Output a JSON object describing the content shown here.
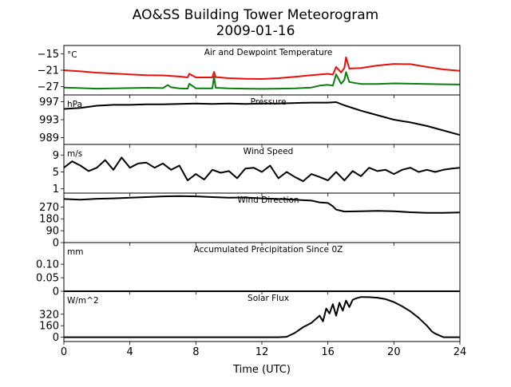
{
  "figure": {
    "title_line1": "AO&SS Building Tower Meteorogram",
    "title_line2": "2009-01-16",
    "xlabel": "Time (UTC)",
    "xlim": [
      0,
      24
    ],
    "xticks": [
      0,
      4,
      8,
      12,
      16,
      20,
      24
    ]
  },
  "chart_data": [
    {
      "type": "line",
      "title": "Air and Dewpoint Temperature",
      "unit_label": "°C",
      "ylim": [
        -30.0,
        -12.0
      ],
      "yticks": [
        -15,
        -21,
        -27
      ],
      "series": [
        {
          "color": "#e8100a",
          "x": [
            0,
            1,
            2,
            3,
            4,
            5,
            6,
            7,
            7.5,
            7.6,
            8,
            9,
            9.1,
            9.2,
            10,
            11,
            12,
            13,
            14,
            15,
            16,
            16.3,
            16.5,
            16.8,
            17,
            17.1,
            17.3,
            18,
            19,
            20,
            21,
            22,
            23,
            24
          ],
          "y": [
            -21,
            -21.4,
            -21.9,
            -22.2,
            -22.5,
            -22.8,
            -22.9,
            -23.3,
            -23.6,
            -22.3,
            -23.6,
            -23.6,
            -21.6,
            -23.5,
            -23.9,
            -24.1,
            -24.2,
            -23.9,
            -23.4,
            -22.8,
            -22.3,
            -22.6,
            -19.8,
            -21.8,
            -20.2,
            -16.3,
            -20.4,
            -20.2,
            -19.3,
            -18.7,
            -18.8,
            -19.8,
            -20.7,
            -21.2
          ]
        },
        {
          "color": "#0a7d0a",
          "x": [
            0,
            1,
            2,
            3,
            4,
            5,
            6,
            6.3,
            6.5,
            7,
            7.5,
            7.6,
            8,
            9,
            9.1,
            9.2,
            10,
            11,
            12,
            13,
            14,
            15,
            15.5,
            16,
            16.3,
            16.5,
            16.8,
            17,
            17.1,
            17.3,
            18,
            19,
            20,
            21,
            22,
            23,
            24
          ],
          "y": [
            -27.3,
            -27.5,
            -27.7,
            -27.6,
            -27.5,
            -27.4,
            -27.5,
            -26.4,
            -27.2,
            -27.6,
            -27.7,
            -25.9,
            -27.6,
            -27.6,
            -23.3,
            -27.4,
            -27.6,
            -27.7,
            -27.8,
            -27.7,
            -27.6,
            -27.3,
            -26.6,
            -26.3,
            -26.6,
            -22.5,
            -25.9,
            -24.5,
            -21.7,
            -25.3,
            -26.0,
            -26.0,
            -25.8,
            -25.9,
            -26.0,
            -26.1,
            -26.2
          ]
        }
      ]
    },
    {
      "type": "line",
      "title": "Pressure",
      "unit_label": "hPa",
      "ylim": [
        987.5,
        998.5
      ],
      "yticks": [
        997,
        993,
        989
      ],
      "series": [
        {
          "color": "#000000",
          "x": [
            0,
            1,
            2,
            3,
            4,
            5,
            6,
            7,
            8,
            9,
            10,
            11,
            12,
            13,
            14,
            15,
            16,
            16.5,
            17,
            18,
            19,
            20,
            21,
            22,
            23,
            24
          ],
          "y": [
            995.4,
            995.6,
            996.1,
            996.3,
            996.3,
            996.4,
            996.4,
            996.5,
            996.6,
            996.5,
            996.6,
            996.5,
            996.6,
            996.6,
            996.7,
            996.8,
            996.8,
            996.9,
            996.2,
            995.0,
            994.0,
            993.0,
            992.4,
            991.6,
            990.6,
            989.6
          ]
        }
      ]
    },
    {
      "type": "line",
      "title": "Wind Speed",
      "unit_label": "m/s",
      "ylim": [
        0.0,
        11.5
      ],
      "yticks": [
        9,
        5,
        1
      ],
      "series": [
        {
          "color": "#000000",
          "x": [
            0,
            0.5,
            1,
            1.5,
            2,
            2.5,
            3,
            3.5,
            4,
            4.5,
            5,
            5.5,
            6,
            6.5,
            7,
            7.5,
            8,
            8.5,
            9,
            9.5,
            10,
            10.5,
            11,
            11.5,
            12,
            12.5,
            13,
            13.5,
            14,
            14.5,
            15,
            15.5,
            16,
            16.5,
            17,
            17.5,
            18,
            18.5,
            19,
            19.5,
            20,
            20.5,
            21,
            21.5,
            22,
            22.5,
            23,
            23.5,
            24
          ],
          "y": [
            6.0,
            7.5,
            6.5,
            5.2,
            6.0,
            7.8,
            5.5,
            8.4,
            6.0,
            7.0,
            7.2,
            6.0,
            7.0,
            5.5,
            6.5,
            3.0,
            4.5,
            3.2,
            5.5,
            4.8,
            5.2,
            3.5,
            5.8,
            6.0,
            5.0,
            6.5,
            3.5,
            5.0,
            3.8,
            2.8,
            4.5,
            3.8,
            3.0,
            5.0,
            3.0,
            5.2,
            4.0,
            6.0,
            5.2,
            5.5,
            4.5,
            5.5,
            6.0,
            5.0,
            5.5,
            5.0,
            5.5,
            5.8,
            6.0
          ]
        }
      ]
    },
    {
      "type": "line",
      "title": "Wind Direction",
      "unit_label": "",
      "ylim": [
        0,
        375
      ],
      "yticks": [
        270,
        180,
        90,
        0
      ],
      "series": [
        {
          "color": "#000000",
          "x": [
            0,
            1,
            2,
            3,
            4,
            5,
            6,
            7,
            8,
            9,
            10,
            11,
            12,
            13,
            14,
            15,
            15.5,
            16,
            16.3,
            16.5,
            17,
            18,
            19,
            20,
            21,
            22,
            23,
            24
          ],
          "y": [
            330,
            325,
            332,
            335,
            340,
            345,
            350,
            352,
            350,
            345,
            340,
            342,
            335,
            330,
            325,
            318,
            305,
            300,
            275,
            250,
            235,
            238,
            240,
            238,
            230,
            225,
            225,
            228
          ]
        }
      ]
    },
    {
      "type": "line",
      "title": "Accumulated Precipitation Since 0Z",
      "unit_label": "mm",
      "ylim": [
        0.0,
        0.18
      ],
      "yticks": [
        0.1,
        0.05,
        0.0
      ],
      "series": [
        {
          "color": "#000000",
          "x": [
            0,
            24
          ],
          "y": [
            0.0,
            0.0
          ]
        }
      ]
    },
    {
      "type": "line",
      "title": "Solar Flux",
      "unit_label": "W/m^2",
      "ylim": [
        -60,
        640
      ],
      "yticks": [
        320,
        160,
        0
      ],
      "series": [
        {
          "color": "#000000",
          "x": [
            0,
            13,
            13.5,
            14,
            14.5,
            15,
            15.5,
            15.7,
            15.9,
            16.1,
            16.3,
            16.5,
            16.7,
            16.9,
            17.1,
            17.3,
            17.5,
            17.7,
            18,
            18.5,
            19,
            19.5,
            20,
            20.5,
            21,
            21.5,
            22,
            22.3,
            22.5,
            23,
            24
          ],
          "y": [
            0,
            0,
            5,
            60,
            140,
            200,
            300,
            220,
            400,
            330,
            460,
            300,
            480,
            370,
            510,
            420,
            520,
            540,
            560,
            558,
            550,
            530,
            490,
            430,
            360,
            270,
            160,
            80,
            50,
            0,
            0
          ]
        }
      ]
    }
  ]
}
